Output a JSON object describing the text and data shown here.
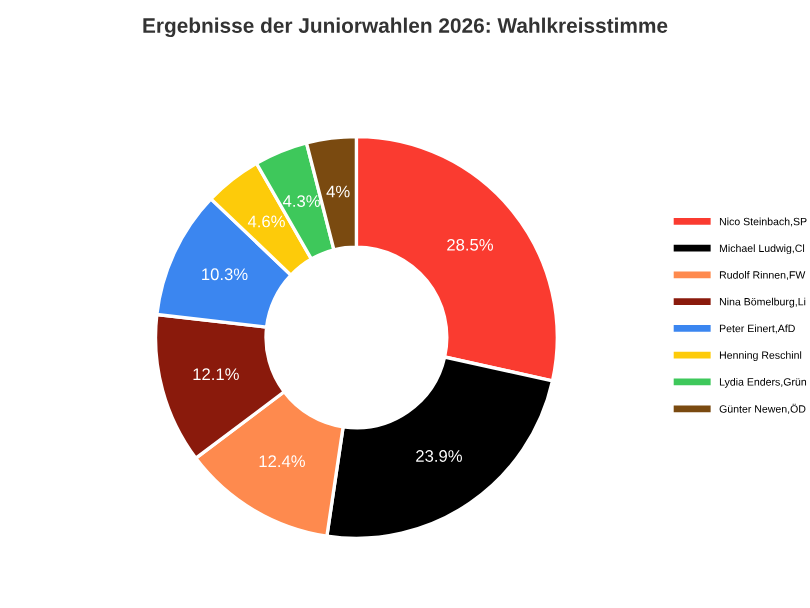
{
  "chart_data": {
    "type": "donut",
    "title": "Ergebnisse der Juniorwahlen 2026: Wahlkreisstimme",
    "categories": [
      "Nico Steinbach,SP",
      "Michael Ludwig,Cl",
      "Rudolf Rinnen,FW",
      "Nina Bömelburg,Li",
      "Peter Einert,AfD",
      "Henning Reschinl",
      "Lydia Enders,Grün",
      "Günter Newen,ÖD"
    ],
    "values": [
      28.5,
      23.9,
      12.4,
      12.1,
      10.3,
      4.6,
      4.3,
      4
    ],
    "value_labels": [
      "28.5%",
      "23.9%",
      "12.4%",
      "12.1%",
      "10.3%",
      "4.6%",
      "4.3%",
      "4%"
    ],
    "colors": [
      "#fa3b30",
      "#000000",
      "#fe8a4e",
      "#8a1a0c",
      "#3b86f0",
      "#fdcb0a",
      "#3ec85b",
      "#7a4a10"
    ],
    "legend": "right"
  }
}
